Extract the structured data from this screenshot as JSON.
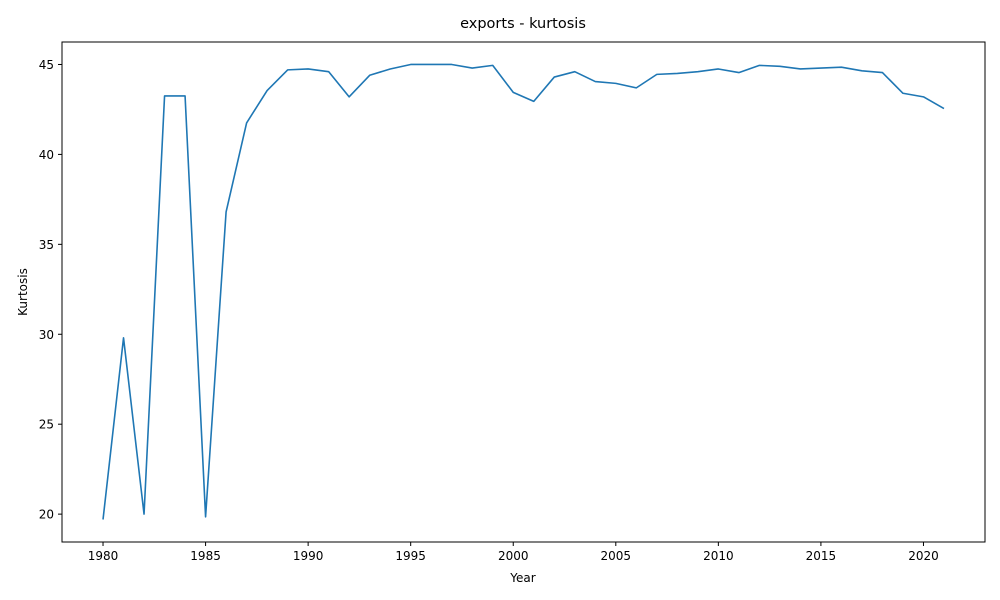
{
  "chart_data": {
    "type": "line",
    "title": "exports - kurtosis",
    "xlabel": "Year",
    "ylabel": "Kurtosis",
    "xlim": [
      1978.0,
      2023.0
    ],
    "ylim": [
      18.45,
      46.25
    ],
    "xticks": [
      1980,
      1985,
      1990,
      1995,
      2000,
      2005,
      2010,
      2015,
      2020
    ],
    "yticks": [
      20,
      25,
      30,
      35,
      40,
      45
    ],
    "grid": false,
    "legend": "none",
    "series": [
      {
        "color": "#1f77b4",
        "x": [
          1980,
          1981,
          1982,
          1983,
          1984,
          1985,
          1986,
          1987,
          1988,
          1989,
          1990,
          1991,
          1992,
          1993,
          1994,
          1995,
          1996,
          1997,
          1998,
          1999,
          2000,
          2001,
          2002,
          2003,
          2004,
          2005,
          2006,
          2007,
          2008,
          2009,
          2010,
          2011,
          2012,
          2013,
          2014,
          2015,
          2016,
          2017,
          2018,
          2019,
          2020,
          2021
        ],
        "y": [
          19.7,
          29.8,
          20.0,
          43.25,
          43.25,
          19.85,
          36.8,
          41.75,
          43.55,
          44.7,
          44.75,
          44.6,
          43.2,
          44.4,
          44.75,
          45.0,
          45.0,
          45.0,
          44.8,
          44.95,
          43.45,
          42.95,
          44.3,
          44.6,
          44.05,
          43.95,
          43.7,
          44.45,
          44.5,
          44.6,
          44.75,
          44.55,
          44.95,
          44.9,
          44.75,
          44.8,
          44.85,
          44.65,
          44.55,
          43.4,
          43.2,
          42.55
        ]
      }
    ]
  }
}
